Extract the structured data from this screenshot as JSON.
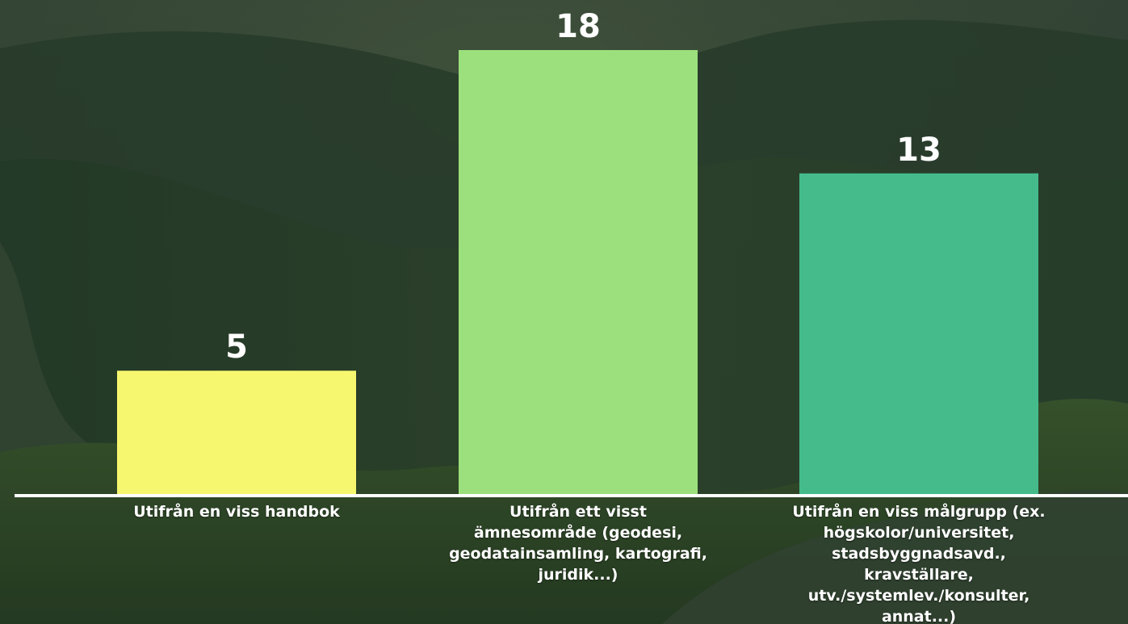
{
  "chart_data": {
    "type": "bar",
    "categories": [
      "Utifrån en viss handbok",
      "Utifrån ett visst ämnesområde (geodesi, geodatainsamling, kartografi, juridik...)",
      "Utifrån en viss målgrupp (ex. högskolor/universitet, stadsbyggnadsavd., kravställare, utv./systemlev./konsulter, annat...)"
    ],
    "values": [
      5,
      18,
      13
    ],
    "data_labels": [
      "5",
      "18",
      "13"
    ],
    "colors": [
      "#f7f76f",
      "#9be07c",
      "#45bb8c"
    ],
    "ylim": [
      0,
      18
    ],
    "grid": false,
    "legend": "none",
    "baseline_color": "#ffffff",
    "label_color": "#ffffff",
    "background": "mountain forest photo (dark green)"
  }
}
